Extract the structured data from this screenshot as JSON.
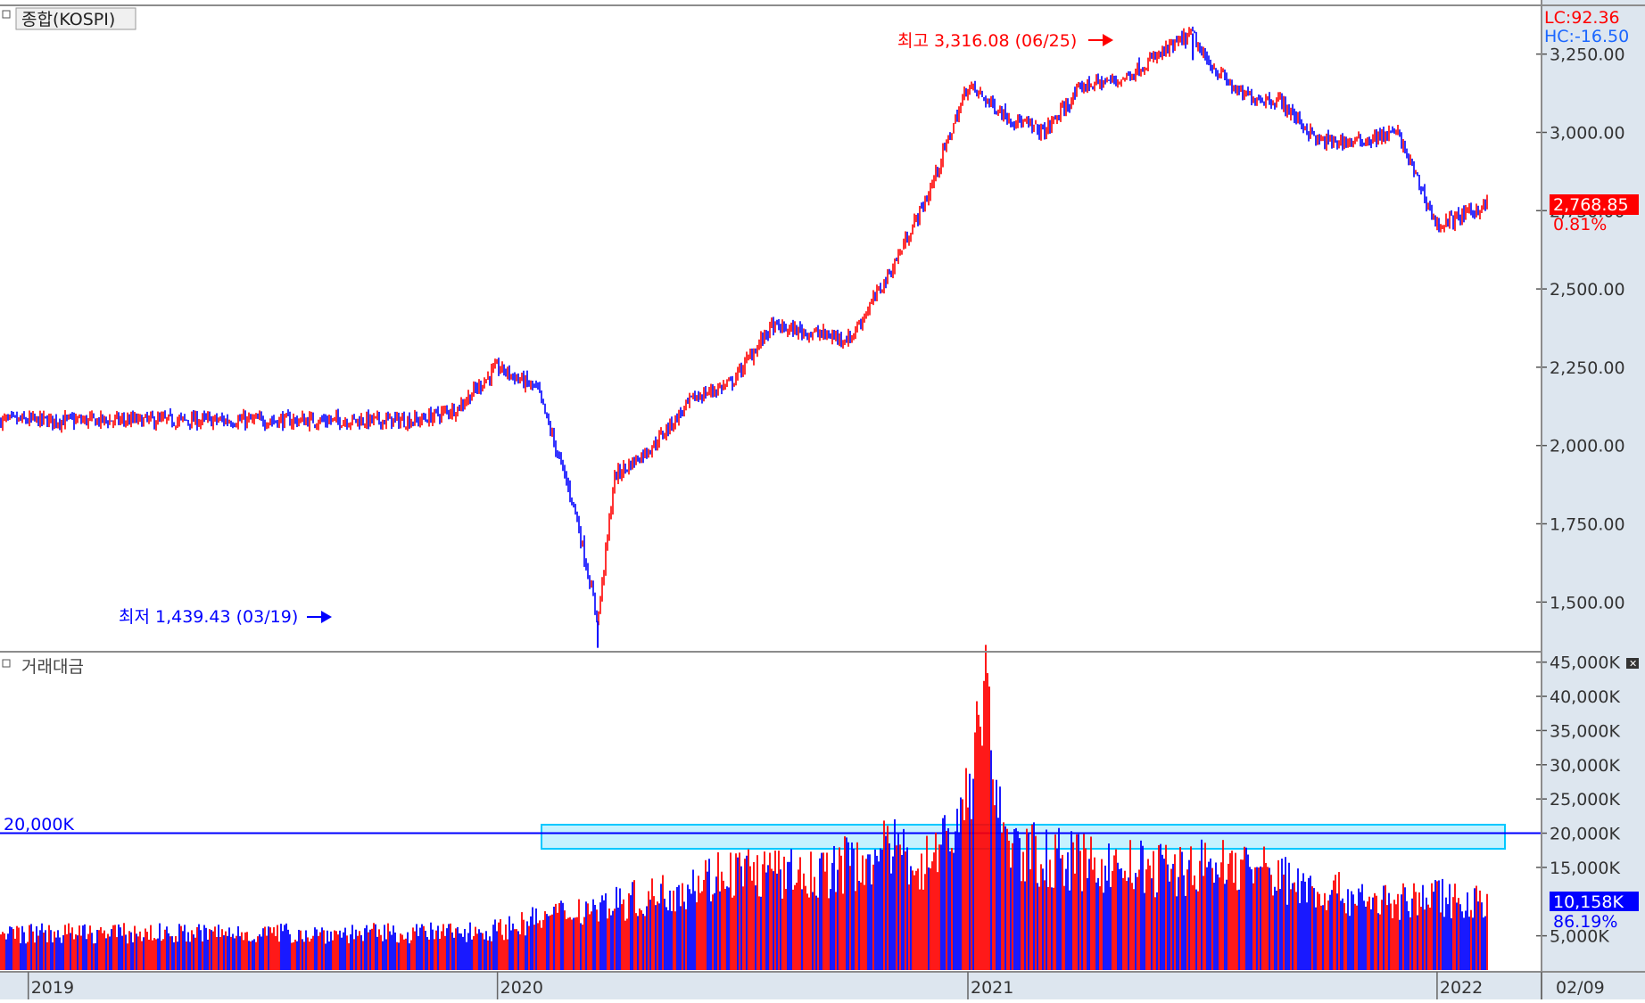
{
  "colors": {
    "up": "#ff0000",
    "down": "#0000ff",
    "axis_bg": "#dde6ef",
    "border": "#8c8c8c",
    "highlight_fill": "#c6f2ff",
    "highlight_stroke": "#00c8ff",
    "guide_line": "#0000ff"
  },
  "price_panel": {
    "title": "종합(KOSPI)",
    "lc_label": "LC:92.36",
    "hc_label": "HC:-16.50",
    "high_annotation": "최고 3,316.08 (06/25)",
    "low_annotation": "최저 1,439.43 (03/19)",
    "current_value": "2,768.85",
    "current_change": "0.81%"
  },
  "volume_panel": {
    "title": "거래대금",
    "guide_label": "20,000K",
    "current_value": "10,158K",
    "current_ratio": "86.19%"
  },
  "x_axis": {
    "labels": [
      "2019",
      "2020",
      "2021",
      "2022"
    ],
    "end_label": "02/09"
  },
  "chart_data": [
    {
      "type": "line",
      "name": "KOSPI",
      "ylim": [
        1350,
        3400
      ],
      "y_ticks": [
        "1,500.00",
        "1,750.00",
        "2,000.00",
        "2,250.00",
        "2,500.00",
        "2,750.00",
        "3,000.00",
        "3,250.00"
      ],
      "y_tick_values": [
        1500,
        1750,
        2000,
        2250,
        2500,
        2750,
        3000,
        3250
      ],
      "x": [
        "2019-11",
        "2019-12",
        "2020-01",
        "2020-02",
        "2020-03",
        "2020-03-19",
        "2020-04",
        "2020-05",
        "2020-06",
        "2020-07",
        "2020-08",
        "2020-09",
        "2020-10",
        "2020-11",
        "2020-12",
        "2021-01",
        "2021-02",
        "2021-03",
        "2021-04",
        "2021-05",
        "2021-06-25",
        "2021-07",
        "2021-08",
        "2021-09",
        "2021-10",
        "2021-11",
        "2021-12",
        "2022-01",
        "2022-02-09"
      ],
      "values": [
        2080,
        2120,
        2250,
        2180,
        1800,
        1439.43,
        1900,
        2000,
        2150,
        2200,
        2380,
        2360,
        2340,
        2550,
        2800,
        3150,
        3050,
        3000,
        3150,
        3170,
        3316.08,
        3250,
        3120,
        3100,
        2970,
        2970,
        3000,
        2700,
        2768.85
      ],
      "high": {
        "date": "06/25",
        "value": 3316.08
      },
      "low": {
        "date": "03/19",
        "value": 1439.43
      }
    },
    {
      "type": "bar",
      "name": "거래대금",
      "ylim": [
        0,
        46000
      ],
      "y_ticks": [
        "5,000K",
        "15,000K",
        "20,000K",
        "25,000K",
        "30,000K",
        "35,000K",
        "40,000K",
        "45,000K"
      ],
      "y_tick_values": [
        5000,
        15000,
        20000,
        25000,
        30000,
        35000,
        40000,
        45000
      ],
      "x": [
        "2019-11",
        "2020-01",
        "2020-03",
        "2020-05",
        "2020-07",
        "2020-09",
        "2020-11",
        "2020-12",
        "2021-01",
        "2021-01-11",
        "2021-02",
        "2021-04",
        "2021-06",
        "2021-08",
        "2021-10",
        "2021-12",
        "2022-01",
        "2022-02-09"
      ],
      "values": [
        5500,
        6000,
        9000,
        11000,
        15000,
        14000,
        18000,
        16000,
        25000,
        44000,
        18000,
        16000,
        15000,
        16000,
        12000,
        10000,
        11000,
        10158
      ],
      "guide_value": 20000
    }
  ]
}
